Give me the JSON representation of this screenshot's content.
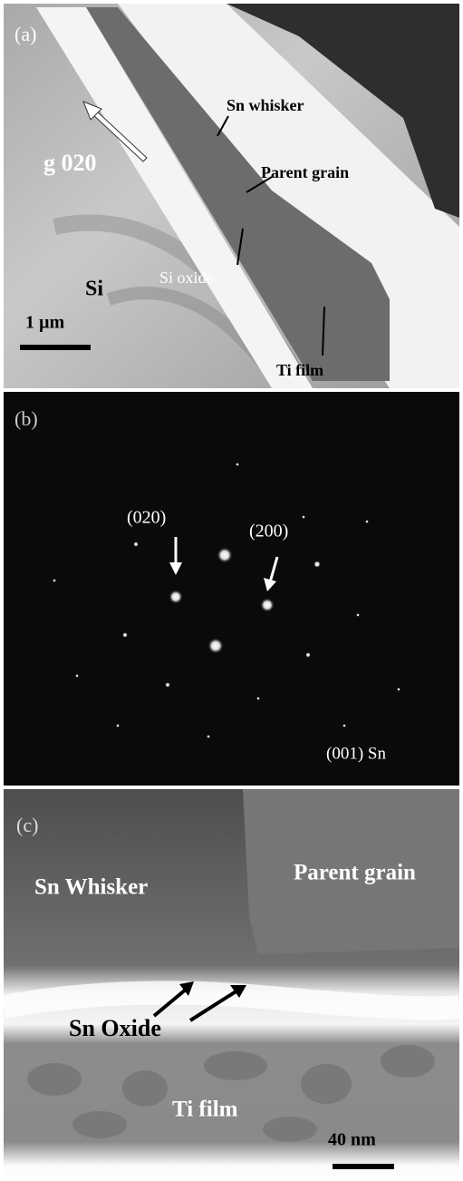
{
  "panels": [
    {
      "label": "(a)",
      "annotations": [
        "Sn whisker",
        "Parent grain",
        "g 020",
        "Si",
        "Si oxide",
        "1 µm",
        "Ti film"
      ]
    },
    {
      "label": "(b)",
      "annotations": [
        "(020)",
        "(200)",
        "(001) Sn"
      ]
    },
    {
      "label": "(c)",
      "annotations": [
        "Sn Whisker",
        "Parent grain",
        "Sn Oxide",
        "Ti film",
        "40 nm"
      ]
    }
  ]
}
